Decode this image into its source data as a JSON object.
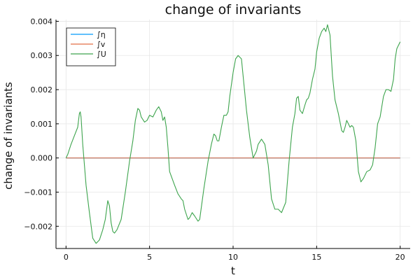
{
  "chart_data": {
    "type": "line",
    "title": "change of invariants",
    "xlabel": "t",
    "ylabel": "change of invariants",
    "xlim": [
      -0.6,
      20.6
    ],
    "ylim": [
      -0.00265,
      0.00405
    ],
    "xticks": [
      0,
      5,
      10,
      15,
      20
    ],
    "xtick_labels": [
      "0",
      "5",
      "10",
      "15",
      "20"
    ],
    "yticks": [
      -0.002,
      -0.001,
      0.0,
      0.001,
      0.002,
      0.003,
      0.004
    ],
    "ytick_labels": [
      "−0.002",
      "−0.001",
      "0.000",
      "0.001",
      "0.002",
      "0.003",
      "0.004"
    ],
    "grid": true,
    "legend_position": "top-left",
    "series": [
      {
        "name": "∫η",
        "color": "#009af9",
        "x": [
          0,
          20
        ],
        "y": [
          0,
          0
        ]
      },
      {
        "name": "∫v",
        "color": "#e26f46",
        "x": [
          0,
          20
        ],
        "y": [
          0,
          0
        ]
      },
      {
        "name": "∫U",
        "color": "#3da44d",
        "x": [
          0,
          0.1,
          0.3,
          0.5,
          0.7,
          0.8,
          0.85,
          0.9,
          1.0,
          1.2,
          1.4,
          1.6,
          1.8,
          1.9,
          2.0,
          2.2,
          2.35,
          2.5,
          2.6,
          2.7,
          2.8,
          2.9,
          3.05,
          3.3,
          3.55,
          3.8,
          4.0,
          4.15,
          4.3,
          4.4,
          4.5,
          4.7,
          4.85,
          5.0,
          5.2,
          5.4,
          5.55,
          5.7,
          5.8,
          5.9,
          6.0,
          6.1,
          6.2,
          6.35,
          6.5,
          6.7,
          6.9,
          7.0,
          7.1,
          7.3,
          7.4,
          7.55,
          7.7,
          7.9,
          8.0,
          8.25,
          8.5,
          8.7,
          8.85,
          8.95,
          9.05,
          9.15,
          9.3,
          9.45,
          9.6,
          9.7,
          9.8,
          10.0,
          10.15,
          10.3,
          10.5,
          10.7,
          10.8,
          11.0,
          11.2,
          11.4,
          11.5,
          11.7,
          11.9,
          12.1,
          12.3,
          12.5,
          12.7,
          12.9,
          13.15,
          13.35,
          13.55,
          13.7,
          13.8,
          13.9,
          14.0,
          14.15,
          14.3,
          14.4,
          14.5,
          14.6,
          14.75,
          14.9,
          15.0,
          15.15,
          15.3,
          15.45,
          15.55,
          15.65,
          15.8,
          15.95,
          16.1,
          16.3,
          16.5,
          16.6,
          16.7,
          16.8,
          16.9,
          17.0,
          17.1,
          17.2,
          17.35,
          17.5,
          17.65,
          17.8,
          17.9,
          18.0,
          18.2,
          18.35,
          18.5,
          18.65,
          18.8,
          18.9,
          19.0,
          19.15,
          19.3,
          19.45,
          19.6,
          19.7,
          19.8,
          19.9,
          20.0
        ],
        "y": [
          0,
          0.0001,
          0.0004,
          0.00065,
          0.0009,
          0.0013,
          0.00135,
          0.0012,
          0.0004,
          -0.0008,
          -0.0016,
          -0.00235,
          -0.0025,
          -0.00245,
          -0.0024,
          -0.0021,
          -0.0018,
          -0.00125,
          -0.0014,
          -0.0019,
          -0.00215,
          -0.0022,
          -0.0021,
          -0.0018,
          -0.001,
          -0.0001,
          0.0005,
          0.0011,
          0.00145,
          0.0014,
          0.0012,
          0.00105,
          0.0011,
          0.00125,
          0.0012,
          0.0014,
          0.0015,
          0.00135,
          0.0011,
          0.0012,
          0.0009,
          0.0003,
          -0.0004,
          -0.0006,
          -0.0008,
          -0.00105,
          -0.0012,
          -0.00125,
          -0.0015,
          -0.0018,
          -0.00175,
          -0.0016,
          -0.0017,
          -0.00185,
          -0.0018,
          -0.0009,
          -0.0001,
          0.0004,
          0.0007,
          0.00065,
          0.0005,
          0.0005,
          0.0009,
          0.00125,
          0.00125,
          0.00135,
          0.0018,
          0.0025,
          0.0029,
          0.003,
          0.0029,
          0.0019,
          0.0014,
          0.0006,
          0.0,
          0.0002,
          0.0004,
          0.00055,
          0.0004,
          -0.0002,
          -0.0012,
          -0.0015,
          -0.0015,
          -0.0016,
          -0.0013,
          -0.0001,
          0.0009,
          0.0013,
          0.00175,
          0.0018,
          0.0014,
          0.0013,
          0.00155,
          0.0017,
          0.00175,
          0.0019,
          0.0023,
          0.0026,
          0.0031,
          0.0035,
          0.0037,
          0.0038,
          0.0037,
          0.0039,
          0.0036,
          0.0024,
          0.0017,
          0.0013,
          0.0008,
          0.00075,
          0.0009,
          0.0011,
          0.001,
          0.0009,
          0.00095,
          0.0009,
          0.0005,
          -0.0004,
          -0.0007,
          -0.0006,
          -0.0005,
          -0.0004,
          -0.00035,
          -0.0002,
          0.0003,
          0.001,
          0.0012,
          0.0015,
          0.0018,
          0.002,
          0.002,
          0.00195,
          0.0023,
          0.0029,
          0.0032,
          0.0033,
          0.0034
        ]
      }
    ]
  }
}
